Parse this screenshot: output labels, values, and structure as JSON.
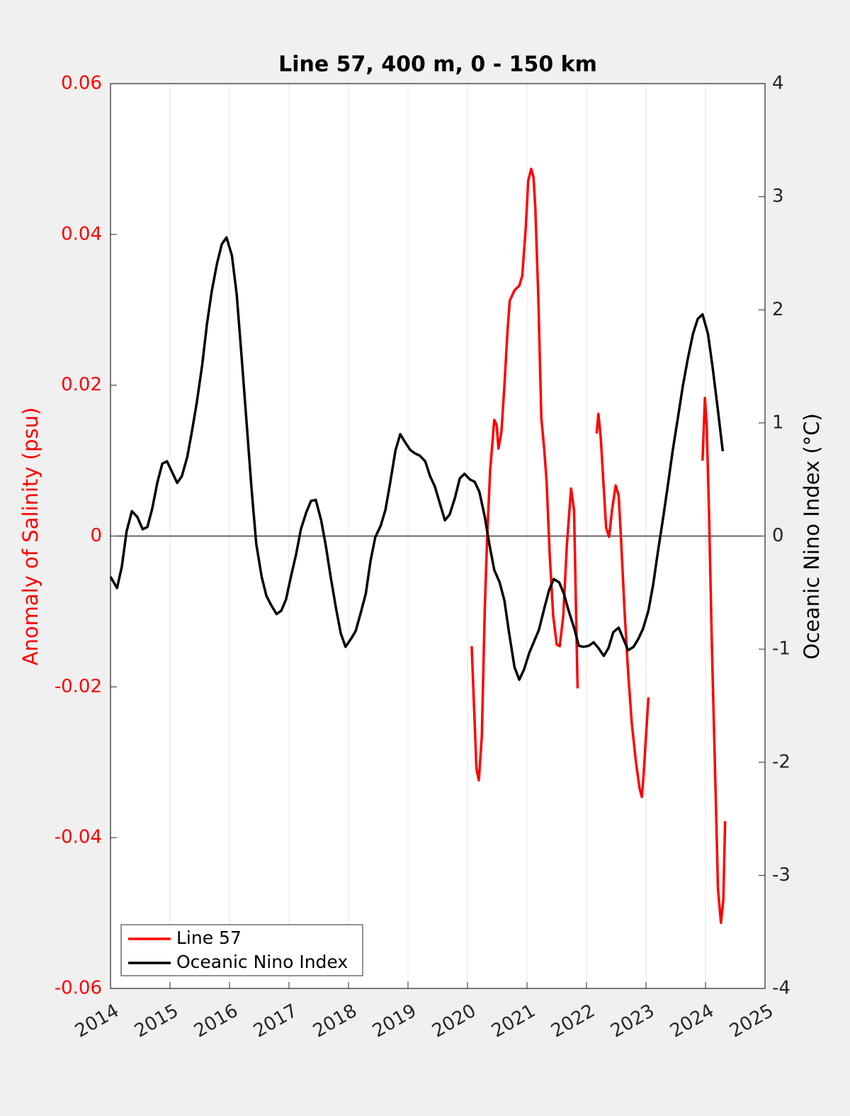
{
  "chart_data": {
    "type": "line",
    "title": "Line 57, 400 m, 0 - 150 km",
    "y_label": "Anomaly of Salinity (psu)",
    "y2_label": "Oceanic Nino Index (°C)",
    "xlim": [
      2014,
      2025
    ],
    "xticks": [
      2014,
      2015,
      2016,
      2017,
      2018,
      2019,
      2020,
      2021,
      2022,
      2023,
      2024,
      2025
    ],
    "ylim": [
      -0.06,
      0.06
    ],
    "yticks": [
      -0.06,
      -0.04,
      -0.02,
      0,
      0.02,
      0.04,
      0.06
    ],
    "y2lim": [
      -4,
      4
    ],
    "y2ticks": [
      -4,
      -3,
      -2,
      -1,
      0,
      1,
      2,
      3,
      4
    ],
    "grid": "x",
    "reference_line": 0,
    "legend": "lower left",
    "series": [
      {
        "name": "Line 57",
        "color": "#ff0000",
        "axis": "y",
        "x": [
          2020.07,
          2020.12,
          2020.15,
          2020.19,
          2020.24,
          2020.29,
          2020.33,
          2020.38,
          2020.45,
          2020.49,
          2020.52,
          2020.57,
          2020.62,
          2020.67,
          2020.71,
          2020.79,
          2020.87,
          2020.92,
          2020.98,
          2021.02,
          2021.07,
          2021.11,
          2021.14,
          2021.19,
          2021.24,
          2021.29,
          2021.33,
          2021.38,
          2021.44,
          2021.5,
          2021.55,
          2021.61,
          2021.67,
          2021.74,
          2021.79,
          2021.85,
          2022.0,
          2022.17,
          2022.2,
          2022.24,
          2022.29,
          2022.33,
          2022.38,
          2022.43,
          2022.49,
          2022.54,
          2022.58,
          2022.64,
          2022.7,
          2022.76,
          2022.83,
          2022.89,
          2022.93,
          2022.96,
          2023.04,
          2023.5,
          2023.95,
          2023.99,
          2024.02,
          2024.06,
          2024.11,
          2024.17,
          2024.21,
          2024.26,
          2024.3,
          2024.33
        ],
        "values": [
          -0.0146,
          -0.0247,
          -0.0308,
          -0.0324,
          -0.0266,
          -0.0097,
          -0.0003,
          0.0086,
          0.0154,
          0.0147,
          0.0116,
          0.0138,
          0.0199,
          0.0269,
          0.0312,
          0.0326,
          0.0332,
          0.0345,
          0.041,
          0.0471,
          0.0487,
          0.0476,
          0.0434,
          0.0316,
          0.0157,
          0.0114,
          0.0072,
          -0.0022,
          -0.0106,
          -0.0144,
          -0.0146,
          -0.0106,
          -0.0012,
          0.0063,
          0.0035,
          -0.0202,
          null,
          0.0136,
          0.0162,
          0.0129,
          0.0063,
          0.0011,
          -0.0001,
          0.0035,
          0.0067,
          0.0054,
          -0.0003,
          -0.0101,
          -0.0181,
          -0.0247,
          -0.0299,
          -0.0334,
          -0.0346,
          -0.0317,
          -0.0214,
          null,
          0.01,
          0.0183,
          0.0147,
          0.003,
          -0.0153,
          -0.0341,
          -0.0468,
          -0.0513,
          -0.0482,
          -0.0378
        ]
      },
      {
        "name": "Oceanic Nino Index",
        "color": "#000000",
        "axis": "y2",
        "x": [
          2014.0,
          2014.11,
          2014.19,
          2014.27,
          2014.36,
          2014.45,
          2014.54,
          2014.62,
          2014.7,
          2014.79,
          2014.87,
          2014.95,
          2015.04,
          2015.12,
          2015.2,
          2015.29,
          2015.37,
          2015.45,
          2015.54,
          2015.62,
          2015.7,
          2015.79,
          2015.87,
          2015.95,
          2016.04,
          2016.12,
          2016.2,
          2016.29,
          2016.37,
          2016.45,
          2016.54,
          2016.62,
          2016.7,
          2016.79,
          2016.87,
          2016.95,
          2017.04,
          2017.12,
          2017.2,
          2017.29,
          2017.37,
          2017.45,
          2017.54,
          2017.62,
          2017.7,
          2017.79,
          2017.87,
          2017.95,
          2018.04,
          2018.12,
          2018.2,
          2018.29,
          2018.37,
          2018.45,
          2018.54,
          2018.62,
          2018.7,
          2018.79,
          2018.87,
          2018.95,
          2019.04,
          2019.12,
          2019.2,
          2019.29,
          2019.37,
          2019.45,
          2019.54,
          2019.62,
          2019.7,
          2019.79,
          2019.87,
          2019.95,
          2020.04,
          2020.12,
          2020.2,
          2020.29,
          2020.37,
          2020.45,
          2020.54,
          2020.62,
          2020.7,
          2020.79,
          2020.87,
          2020.95,
          2021.04,
          2021.12,
          2021.2,
          2021.29,
          2021.37,
          2021.45,
          2021.54,
          2021.62,
          2021.7,
          2021.79,
          2021.87,
          2021.95,
          2022.04,
          2022.12,
          2022.2,
          2022.29,
          2022.37,
          2022.45,
          2022.54,
          2022.62,
          2022.7,
          2022.79,
          2022.87,
          2022.95,
          2023.04,
          2023.12,
          2023.2,
          2023.29,
          2023.37,
          2023.45,
          2023.54,
          2023.62,
          2023.7,
          2023.79,
          2023.87,
          2023.95,
          2024.04,
          2024.12,
          2024.2,
          2024.29
        ],
        "values": [
          -0.36,
          -0.46,
          -0.27,
          0.04,
          0.22,
          0.17,
          0.06,
          0.08,
          0.24,
          0.48,
          0.64,
          0.66,
          0.56,
          0.47,
          0.53,
          0.7,
          0.93,
          1.18,
          1.51,
          1.87,
          2.16,
          2.41,
          2.58,
          2.64,
          2.48,
          2.14,
          1.61,
          0.98,
          0.42,
          -0.07,
          -0.36,
          -0.53,
          -0.61,
          -0.69,
          -0.66,
          -0.56,
          -0.34,
          -0.16,
          0.06,
          0.21,
          0.31,
          0.32,
          0.14,
          -0.09,
          -0.36,
          -0.64,
          -0.86,
          -0.98,
          -0.91,
          -0.84,
          -0.69,
          -0.51,
          -0.22,
          -0.01,
          0.09,
          0.23,
          0.47,
          0.76,
          0.9,
          0.83,
          0.76,
          0.73,
          0.71,
          0.66,
          0.53,
          0.44,
          0.28,
          0.14,
          0.19,
          0.34,
          0.51,
          0.55,
          0.5,
          0.48,
          0.39,
          0.17,
          -0.08,
          -0.3,
          -0.41,
          -0.57,
          -0.86,
          -1.16,
          -1.27,
          -1.18,
          -1.03,
          -0.93,
          -0.83,
          -0.64,
          -0.48,
          -0.38,
          -0.41,
          -0.51,
          -0.66,
          -0.81,
          -0.97,
          -0.98,
          -0.97,
          -0.94,
          -0.99,
          -1.06,
          -0.99,
          -0.85,
          -0.81,
          -0.91,
          -1.01,
          -0.98,
          -0.91,
          -0.82,
          -0.66,
          -0.43,
          -0.14,
          0.17,
          0.46,
          0.76,
          1.06,
          1.33,
          1.56,
          1.79,
          1.92,
          1.96,
          1.79,
          1.49,
          1.15,
          0.75
        ]
      }
    ]
  }
}
